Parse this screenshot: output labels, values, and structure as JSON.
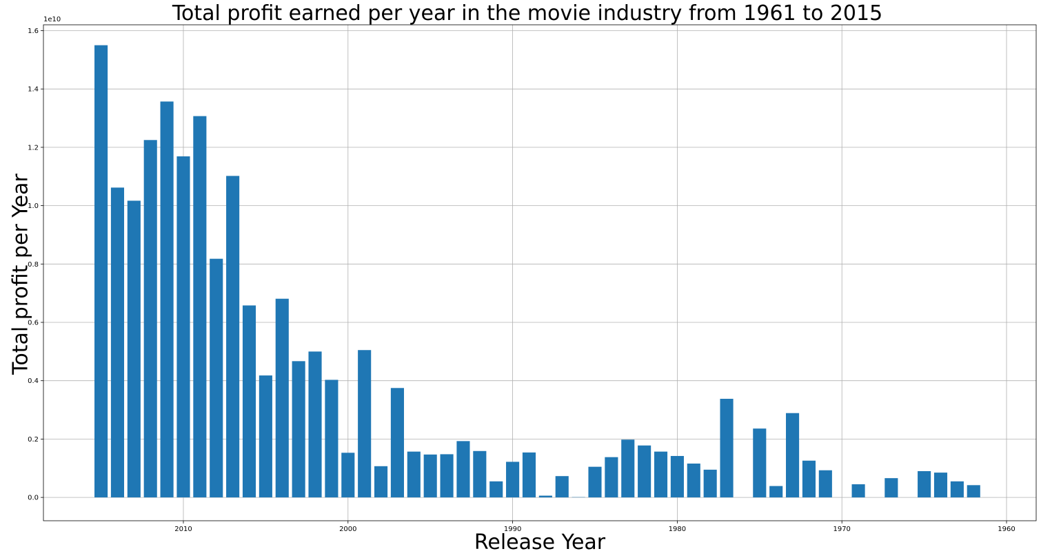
{
  "chart_data": {
    "type": "bar",
    "title": "Total profit earned per year in the movie industry from 1961 to 2015",
    "xlabel": "Release Year",
    "ylabel": "Total profit per Year",
    "y_exponent_label": "1e10",
    "x_inverted": true,
    "xlim": [
      2018.5,
      1958.2
    ],
    "ylim": [
      -0.08,
      1.62
    ],
    "y_scale": 10000000000.0,
    "grid": true,
    "bar_color": "#1f77b4",
    "x_ticks": [
      2010,
      2000,
      1990,
      1980,
      1970,
      1960
    ],
    "y_ticks": [
      "0.0",
      "0.2",
      "0.4",
      "0.6",
      "0.8",
      "1.0",
      "1.2",
      "1.4",
      "1.6"
    ],
    "x": [
      2015,
      2014,
      2013,
      2012,
      2011,
      2010,
      2009,
      2008,
      2007,
      2006,
      2005,
      2004,
      2003,
      2002,
      2001,
      2000,
      1999,
      1998,
      1997,
      1996,
      1995,
      1994,
      1993,
      1992,
      1991,
      1990,
      1989,
      1988,
      1987,
      1986,
      1985,
      1984,
      1983,
      1982,
      1981,
      1980,
      1979,
      1978,
      1977,
      1976,
      1975,
      1974,
      1973,
      1972,
      1971,
      1970,
      1969,
      1968,
      1967,
      1966,
      1965,
      1964,
      1963,
      1962,
      1961
    ],
    "values": [
      1.55,
      1.062,
      1.017,
      1.225,
      1.357,
      1.169,
      1.307,
      0.818,
      1.102,
      0.658,
      0.418,
      0.681,
      0.467,
      0.5,
      0.403,
      0.153,
      0.505,
      0.107,
      0.375,
      0.157,
      0.147,
      0.148,
      0.193,
      0.159,
      0.055,
      0.122,
      0.154,
      0.006,
      0.073,
      0.001,
      0.105,
      0.138,
      0.198,
      0.178,
      0.157,
      0.142,
      0.116,
      0.095,
      0.338,
      0,
      0.236,
      0.039,
      0.289,
      0.126,
      0.093,
      0,
      0.045,
      0,
      0.066,
      0,
      0.09,
      0.085,
      0.055,
      0.042,
      0
    ]
  }
}
